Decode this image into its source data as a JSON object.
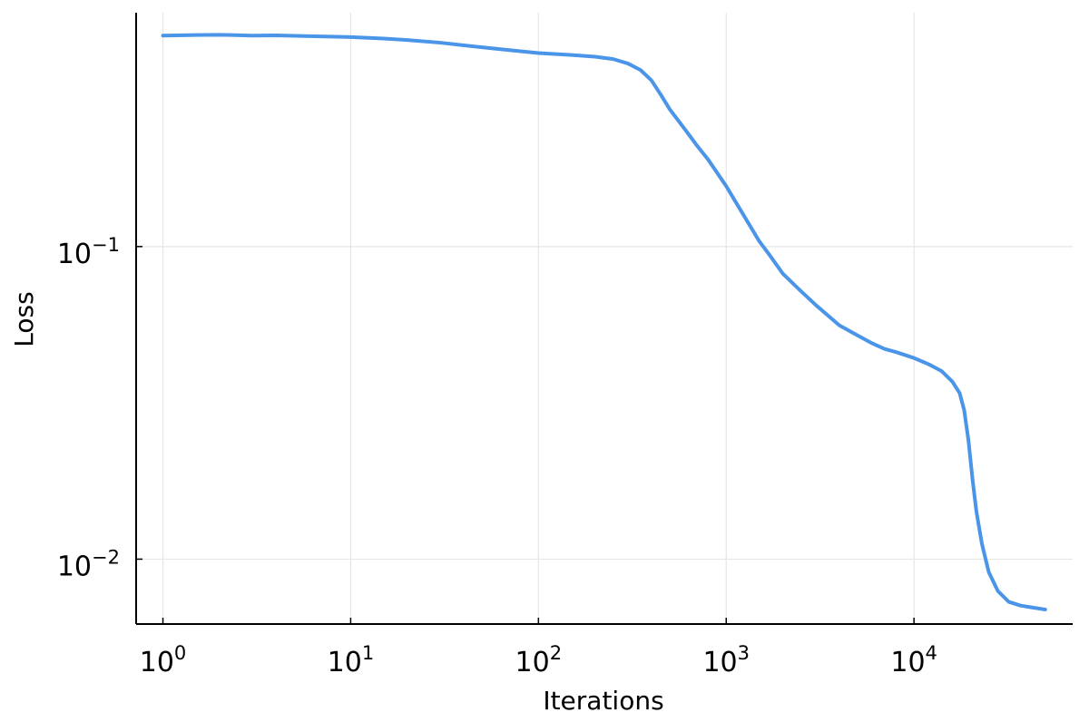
{
  "chart_data": {
    "type": "line",
    "title": "",
    "xlabel": "Iterations",
    "ylabel": "Loss",
    "xscale": "log",
    "yscale": "log",
    "xlim": [
      0.72,
      70000
    ],
    "ylim": [
      0.0062,
      0.56
    ],
    "grid": true,
    "legend": "none",
    "x_ticks": [
      {
        "value": 1,
        "base": "10",
        "exp": "0"
      },
      {
        "value": 10,
        "base": "10",
        "exp": "1"
      },
      {
        "value": 100,
        "base": "10",
        "exp": "2"
      },
      {
        "value": 1000,
        "base": "10",
        "exp": "3"
      },
      {
        "value": 10000,
        "base": "10",
        "exp": "4"
      }
    ],
    "y_ticks": [
      {
        "value": 0.1,
        "base": "10",
        "exp": "−1"
      },
      {
        "value": 0.01,
        "base": "10",
        "exp": "−2"
      }
    ],
    "series": [
      {
        "color": "#4a95e8",
        "x": [
          1,
          1.5,
          2,
          3,
          4,
          6,
          10,
          15,
          20,
          30,
          50,
          70,
          100,
          150,
          200,
          250,
          300,
          350,
          400,
          450,
          500,
          600,
          700,
          800,
          1000,
          1200,
          1500,
          1700,
          2000,
          2500,
          3000,
          3500,
          4000,
          5000,
          6000,
          7000,
          8000,
          10000,
          12000,
          14000,
          16000,
          17500,
          18500,
          19500,
          20500,
          21500,
          23000,
          25000,
          28000,
          32000,
          37000,
          43000,
          50000
        ],
        "y": [
          0.473,
          0.475,
          0.476,
          0.473,
          0.474,
          0.471,
          0.468,
          0.463,
          0.458,
          0.449,
          0.434,
          0.425,
          0.416,
          0.41,
          0.405,
          0.398,
          0.385,
          0.367,
          0.34,
          0.305,
          0.275,
          0.238,
          0.21,
          0.19,
          0.156,
          0.13,
          0.104,
          0.094,
          0.082,
          0.072,
          0.065,
          0.06,
          0.056,
          0.052,
          0.049,
          0.047,
          0.046,
          0.044,
          0.042,
          0.04,
          0.037,
          0.034,
          0.03,
          0.024,
          0.018,
          0.0142,
          0.0112,
          0.0091,
          0.0079,
          0.0073,
          0.0071,
          0.007,
          0.0069
        ]
      }
    ]
  }
}
